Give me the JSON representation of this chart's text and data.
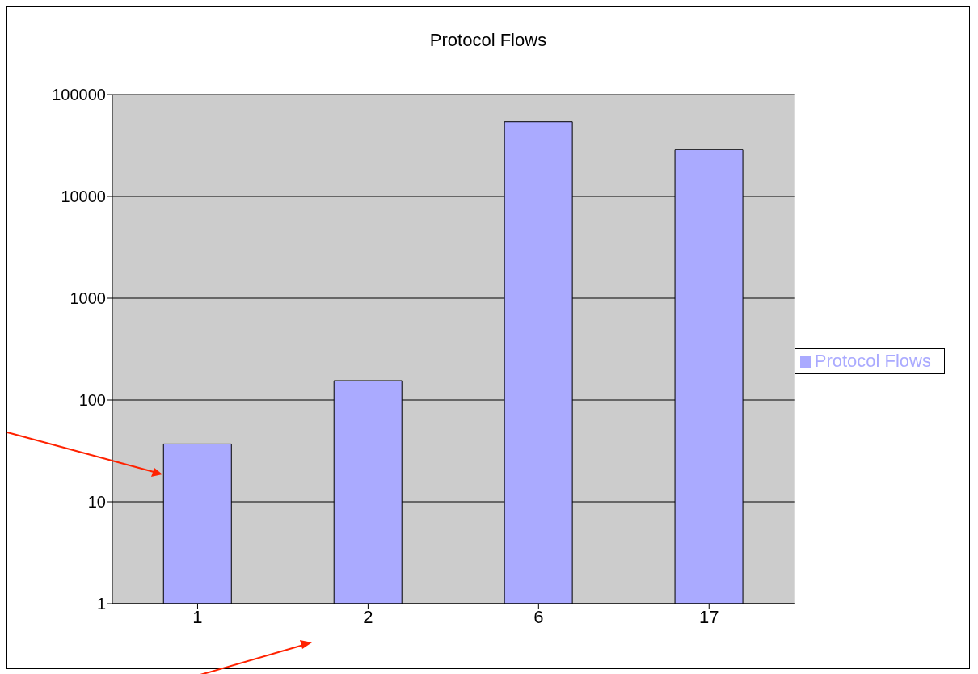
{
  "chart_data": {
    "type": "bar",
    "title": "Protocol Flows",
    "categories": [
      "1",
      "2",
      "6",
      "17"
    ],
    "series": [
      {
        "name": "Protocol Flows",
        "color": "#aaaaff",
        "values": [
          37,
          155,
          54000,
          29000
        ]
      }
    ],
    "log": "y",
    "ylim": [
      1,
      100000
    ],
    "yticks": [
      1,
      10,
      100,
      1000,
      10000,
      100000
    ],
    "grid": "y",
    "legend": "right"
  }
}
